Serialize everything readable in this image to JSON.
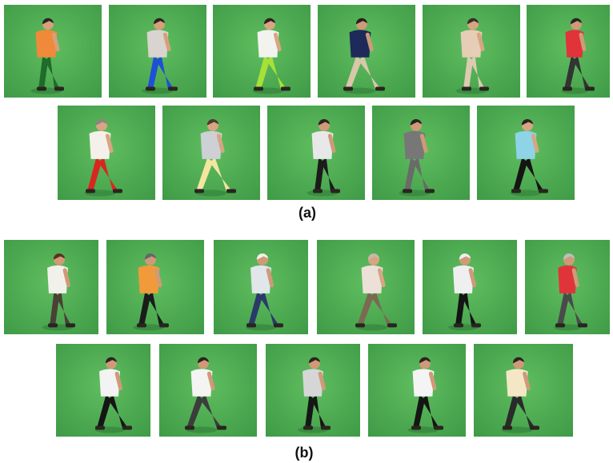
{
  "figure": {
    "panel_a": {
      "caption": "(a)",
      "frames": [
        {
          "shirt": "#f08a3a",
          "pants": "#1f6b2a",
          "hair": "#2a2320",
          "skin": "#d6a07c",
          "dir": "right"
        },
        {
          "shirt": "#d9d4d0",
          "pants": "#1e4fd6",
          "hair": "#2b2420",
          "skin": "#d6a07c",
          "dir": "right"
        },
        {
          "shirt": "#f2f2ee",
          "pants": "#a8e03a",
          "hair": "#2a2320",
          "skin": "#d8a582",
          "dir": "right"
        },
        {
          "shirt": "#1d2a5a",
          "pants": "#d8c7aa",
          "hair": "#262020",
          "skin": "#cf9a78",
          "dir": "right"
        },
        {
          "shirt": "#e6cdb6",
          "pants": "#dccbb0",
          "hair": "#3a2e28",
          "skin": "#d8a582",
          "dir": "right"
        },
        {
          "shirt": "#e0333a",
          "pants": "#333333",
          "hair": "#2a2320",
          "skin": "#cf9a78",
          "dir": "right"
        },
        {
          "shirt": "#f4f1ea",
          "pants": "#d9261f",
          "hair": "#8c8580",
          "skin": "#d8a582",
          "dir": "right"
        },
        {
          "shirt": "#cdd0d4",
          "pants": "#f2e6a0",
          "hair": "#4a3b30",
          "skin": "#d8a582",
          "dir": "right"
        },
        {
          "shirt": "#e8e8e8",
          "pants": "#1b1b1b",
          "hair": "#2a2320",
          "skin": "#cf9a78",
          "dir": "right"
        },
        {
          "shirt": "#777777",
          "pants": "#6a6a6a",
          "hair": "#2a2320",
          "skin": "#cf9a78",
          "dir": "right"
        },
        {
          "shirt": "#8fd3e6",
          "pants": "#151515",
          "hair": "#2a2320",
          "skin": "#d8a582",
          "dir": "right"
        }
      ]
    },
    "panel_b": {
      "caption": "(b)",
      "frames": [
        {
          "shirt": "#f2f0ea",
          "pants": "#4a4036",
          "hair": "#5a2f20",
          "skin": "#cf9a78",
          "dir": "right"
        },
        {
          "shirt": "#f09a3c",
          "pants": "#1b1b1b",
          "hair": "#666666",
          "skin": "#cf9a78",
          "dir": "right"
        },
        {
          "shirt": "#e0e6ea",
          "pants": "#2a3a6a",
          "hair": "#f2f2e6",
          "skin": "#cf9a78",
          "dir": "right"
        },
        {
          "shirt": "#ece1d8",
          "pants": "#7a6a52",
          "hair": "#c8b8a8",
          "skin": "#d8a582",
          "dir": "right"
        },
        {
          "shirt": "#efefef",
          "pants": "#141414",
          "hair": "#efefef",
          "skin": "#cf9a78",
          "dir": "right"
        },
        {
          "shirt": "#e0343a",
          "pants": "#4a4a4a",
          "hair": "#bdbdbd",
          "skin": "#cf9a78",
          "dir": "right"
        },
        {
          "shirt": "#f3f3f3",
          "pants": "#151515",
          "hair": "#2a2320",
          "skin": "#cf9a78",
          "dir": "right"
        },
        {
          "shirt": "#f4f4f2",
          "pants": "#3c3c3c",
          "hair": "#2a2320",
          "skin": "#cf9a78",
          "dir": "right"
        },
        {
          "shirt": "#d6d6d6",
          "pants": "#161616",
          "hair": "#2a2320",
          "skin": "#cf9a78",
          "dir": "right"
        },
        {
          "shirt": "#f4f4f4",
          "pants": "#151515",
          "hair": "#2a2320",
          "skin": "#cf9a78",
          "dir": "right"
        },
        {
          "shirt": "#f3e7c6",
          "pants": "#2a2a2a",
          "hair": "#2a2320",
          "skin": "#cf9a78",
          "dir": "right"
        }
      ]
    },
    "colors": {
      "bg_light": "#5fbd5f",
      "bg_dark": "#3f9a46",
      "shadow": "#2f7a37"
    }
  }
}
